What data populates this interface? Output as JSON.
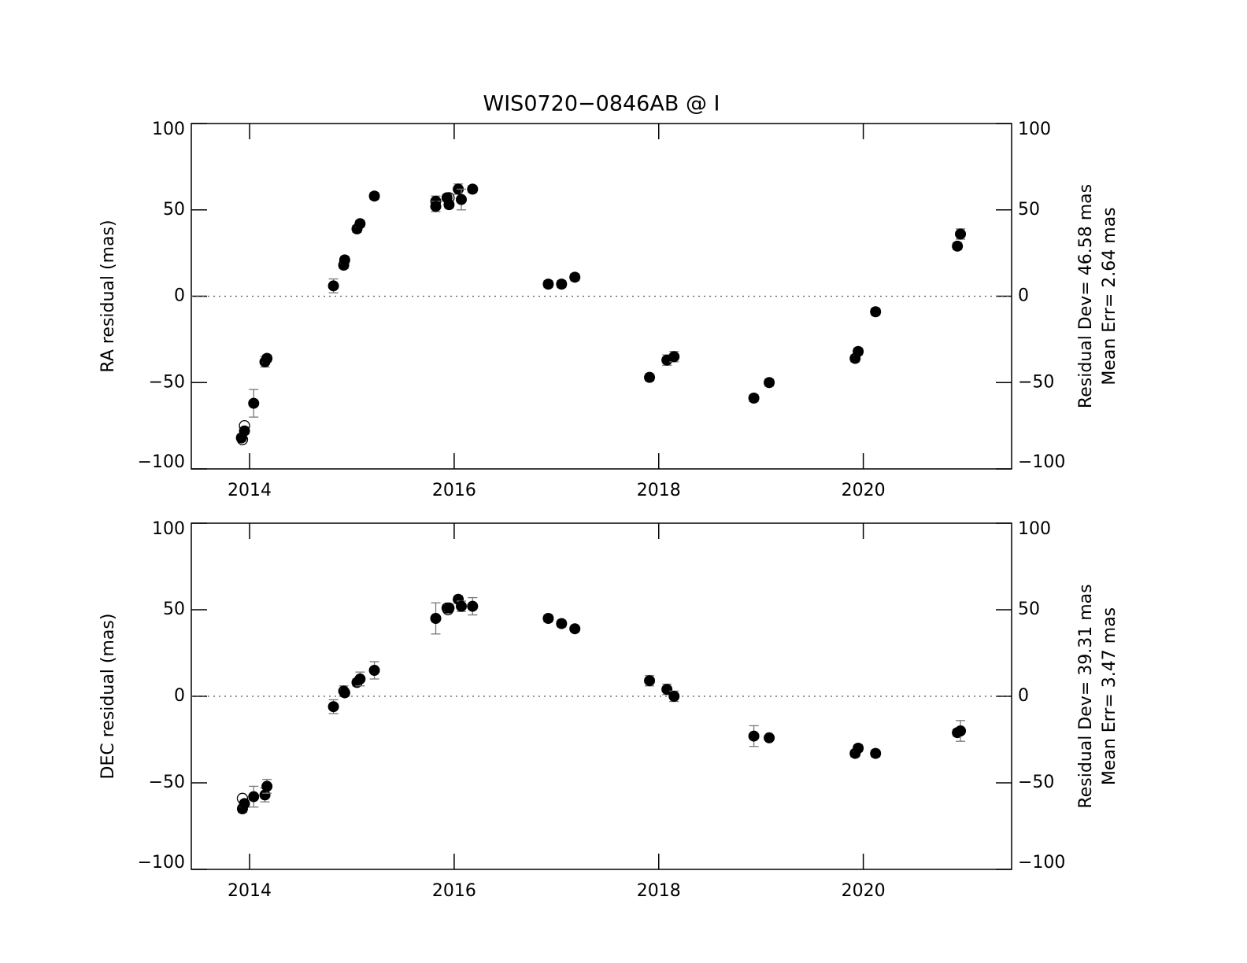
{
  "chart_data": [
    {
      "type": "scatter",
      "title": "WIS0720−0846AB @ I",
      "ylabel": "RA residual (mas)",
      "annotations": [
        "Residual Dev= 46.58 mas",
        "Mean Err= 2.64 mas"
      ],
      "xlim": [
        2013.43,
        2021.45
      ],
      "xticks": [
        2014,
        2016,
        2018,
        2020
      ],
      "ylim": [
        -100,
        100
      ],
      "yticks": [
        {
          "value": -100,
          "label": "−100"
        },
        {
          "value": -50,
          "label": "−50"
        },
        0,
        50,
        100
      ],
      "zero_line": true,
      "series": [
        {
          "marker": "filled",
          "color": "#000000",
          "x": [
            2013.92,
            2013.95,
            2014.04,
            2014.15,
            2014.17,
            2014.82,
            2014.92,
            2014.93,
            2015.05,
            2015.08,
            2015.22,
            2015.82,
            2015.82,
            2015.93,
            2015.95,
            2016.04,
            2016.07,
            2016.18,
            2016.92,
            2017.05,
            2017.18,
            2017.91,
            2018.08,
            2018.15,
            2018.93,
            2019.08,
            2019.92,
            2019.95,
            2020.12,
            2020.92,
            2020.95
          ],
          "values": [
            -82,
            -78,
            -62,
            -38,
            -36,
            6,
            18,
            21,
            39,
            42,
            58,
            55,
            52,
            57,
            53,
            62,
            56,
            62,
            7,
            7,
            11,
            -47,
            -37,
            -35,
            -59,
            -50,
            -36,
            -32,
            -9,
            29,
            36
          ],
          "errors": [
            2,
            2,
            8,
            3,
            2,
            4,
            2,
            2,
            2,
            2,
            2,
            3,
            3,
            2,
            2,
            3,
            6,
            2,
            2,
            2,
            2,
            2,
            3,
            3,
            2,
            2,
            2,
            2,
            2,
            2,
            3
          ]
        },
        {
          "marker": "open",
          "color": "#000000",
          "x": [
            2013.95,
            2013.93,
            2015.95
          ],
          "values": [
            -75,
            -83,
            57
          ]
        }
      ]
    },
    {
      "type": "scatter",
      "ylabel": "DEC residual (mas)",
      "annotations": [
        "Residual Dev= 39.31 mas",
        "Mean Err= 3.47 mas"
      ],
      "xlim": [
        2013.43,
        2021.45
      ],
      "xticks": [
        2014,
        2016,
        2018,
        2020
      ],
      "ylim": [
        -100,
        100
      ],
      "yticks": [
        {
          "value": -100,
          "label": "−100"
        },
        {
          "value": -50,
          "label": "−50"
        },
        0,
        50,
        100
      ],
      "zero_line": true,
      "series": [
        {
          "marker": "filled",
          "color": "#000000",
          "x": [
            2013.93,
            2013.95,
            2014.04,
            2014.15,
            2014.17,
            2014.82,
            2014.92,
            2014.93,
            2015.05,
            2015.08,
            2015.22,
            2015.82,
            2015.93,
            2015.95,
            2016.04,
            2016.07,
            2016.18,
            2016.92,
            2017.05,
            2017.18,
            2017.91,
            2018.08,
            2018.15,
            2018.93,
            2019.08,
            2019.92,
            2019.95,
            2020.12,
            2020.92,
            2020.95
          ],
          "values": [
            -65,
            -62,
            -58,
            -57,
            -52,
            -6,
            3,
            2,
            8,
            10,
            15,
            45,
            51,
            51,
            56,
            52,
            52,
            45,
            42,
            39,
            9,
            4,
            0,
            -23,
            -24,
            -33,
            -30,
            -33,
            -21,
            -20
          ],
          "errors": [
            2,
            2,
            6,
            4,
            4,
            4,
            3,
            2,
            2,
            4,
            5,
            9,
            2,
            2,
            2,
            3,
            5,
            2,
            2,
            1,
            3,
            3,
            3,
            6,
            1,
            2,
            2,
            2,
            2,
            6
          ]
        },
        {
          "marker": "open",
          "color": "#000000",
          "x": [
            2013.93,
            2015.94
          ],
          "values": [
            -59,
            50
          ]
        }
      ]
    }
  ]
}
